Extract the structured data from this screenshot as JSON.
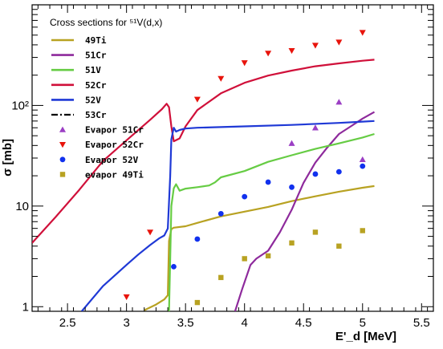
{
  "chart_data": {
    "type": "line",
    "legend_title": "Cross sections for ⁵¹V(d,x)",
    "xlabel": "E'_d [MeV]",
    "ylabel": "σ [mb]",
    "xlim": [
      2.2,
      5.6
    ],
    "ylim": [
      0.9,
      1000
    ],
    "y_scale": "log",
    "grid": false,
    "legend_position": "top-left",
    "x_ticks": [
      2.5,
      3,
      3.5,
      4,
      4.5,
      5,
      5.5
    ],
    "y_ticks": [
      1,
      10,
      100
    ],
    "y_tick_labels": [
      "1",
      "10",
      "10²"
    ],
    "series": [
      {
        "name": "49Ti",
        "kind": "line",
        "color": "#b8a222",
        "dash": "",
        "points": [
          [
            3.15,
            0.92
          ],
          [
            3.25,
            1.05
          ],
          [
            3.32,
            1.18
          ],
          [
            3.35,
            1.3
          ],
          [
            3.36,
            4.5
          ],
          [
            3.38,
            5.9
          ],
          [
            3.4,
            6.1
          ],
          [
            3.5,
            6.3
          ],
          [
            3.6,
            6.8
          ],
          [
            3.8,
            7.9
          ],
          [
            4.0,
            8.8
          ],
          [
            4.2,
            9.8
          ],
          [
            4.4,
            11.2
          ],
          [
            4.6,
            12.5
          ],
          [
            4.8,
            13.9
          ],
          [
            5.0,
            15.2
          ],
          [
            5.1,
            15.8
          ]
        ]
      },
      {
        "name": "51Cr",
        "kind": "line",
        "color": "#8e2a9c",
        "dash": "",
        "points": [
          [
            3.92,
            0.9
          ],
          [
            3.98,
            1.5
          ],
          [
            4.05,
            2.6
          ],
          [
            4.1,
            3.0
          ],
          [
            4.2,
            3.6
          ],
          [
            4.3,
            5.5
          ],
          [
            4.4,
            9.2
          ],
          [
            4.5,
            17
          ],
          [
            4.6,
            27
          ],
          [
            4.7,
            38
          ],
          [
            4.8,
            52
          ],
          [
            4.9,
            62
          ],
          [
            5.0,
            74
          ],
          [
            5.1,
            86
          ]
        ]
      },
      {
        "name": "51V",
        "kind": "line",
        "color": "#66cc44",
        "dash": "",
        "points": [
          [
            3.36,
            0.9
          ],
          [
            3.37,
            3.0
          ],
          [
            3.38,
            10
          ],
          [
            3.4,
            15
          ],
          [
            3.42,
            16.5
          ],
          [
            3.45,
            14.2
          ],
          [
            3.5,
            14.9
          ],
          [
            3.6,
            15.4
          ],
          [
            3.7,
            16.0
          ],
          [
            3.75,
            17.2
          ],
          [
            3.8,
            19.3
          ],
          [
            4.0,
            22.3
          ],
          [
            4.2,
            27.5
          ],
          [
            4.4,
            32
          ],
          [
            4.6,
            37
          ],
          [
            4.8,
            42
          ],
          [
            5.0,
            48
          ],
          [
            5.1,
            52
          ]
        ]
      },
      {
        "name": "52Cr",
        "kind": "line",
        "color": "#d0103a",
        "dash": "",
        "points": [
          [
            2.2,
            4.3
          ],
          [
            2.4,
            7.8
          ],
          [
            2.6,
            14.5
          ],
          [
            2.8,
            28
          ],
          [
            3.0,
            45
          ],
          [
            3.2,
            72
          ],
          [
            3.3,
            92
          ],
          [
            3.34,
            104
          ],
          [
            3.36,
            96
          ],
          [
            3.38,
            62
          ],
          [
            3.4,
            44
          ],
          [
            3.45,
            47
          ],
          [
            3.5,
            62
          ],
          [
            3.6,
            90
          ],
          [
            3.8,
            132
          ],
          [
            4.0,
            168
          ],
          [
            4.2,
            198
          ],
          [
            4.4,
            222
          ],
          [
            4.6,
            245
          ],
          [
            4.8,
            262
          ],
          [
            5.0,
            278
          ],
          [
            5.1,
            285
          ]
        ]
      },
      {
        "name": "52V",
        "kind": "line",
        "color": "#1f39d6",
        "dash": "",
        "points": [
          [
            2.62,
            0.9
          ],
          [
            2.8,
            1.6
          ],
          [
            3.0,
            2.6
          ],
          [
            3.1,
            3.3
          ],
          [
            3.2,
            4.1
          ],
          [
            3.28,
            4.8
          ],
          [
            3.32,
            5.1
          ],
          [
            3.35,
            6.0
          ],
          [
            3.37,
            20
          ],
          [
            3.38,
            46
          ],
          [
            3.4,
            60
          ],
          [
            3.42,
            55
          ],
          [
            3.45,
            57
          ],
          [
            3.5,
            59
          ],
          [
            3.6,
            60
          ],
          [
            4.0,
            62
          ],
          [
            4.4,
            64
          ],
          [
            4.8,
            67
          ],
          [
            5.0,
            69
          ],
          [
            5.1,
            70
          ]
        ]
      },
      {
        "name": "53Cr",
        "kind": "line",
        "color": "#000000",
        "dash": "8,3,2,3",
        "points": []
      },
      {
        "name": "Evapor 51Cr",
        "kind": "scatter",
        "marker": "triangle-up",
        "color": "#9b3ec4",
        "points": [
          [
            4.4,
            42
          ],
          [
            4.6,
            60
          ],
          [
            4.8,
            108
          ],
          [
            5.0,
            29
          ]
        ]
      },
      {
        "name": "Evapor 52Cr",
        "kind": "scatter",
        "marker": "triangle-down",
        "color": "#e8140c",
        "points": [
          [
            3.0,
            1.25
          ],
          [
            3.2,
            5.5
          ],
          [
            3.6,
            115
          ],
          [
            3.8,
            185
          ],
          [
            4.0,
            265
          ],
          [
            4.2,
            330
          ],
          [
            4.4,
            350
          ],
          [
            4.6,
            395
          ],
          [
            4.8,
            425
          ],
          [
            5.0,
            530
          ]
        ]
      },
      {
        "name": "Evapor 52V",
        "kind": "scatter",
        "marker": "circle",
        "color": "#1131ee",
        "points": [
          [
            3.4,
            2.5
          ],
          [
            3.6,
            4.7
          ],
          [
            3.8,
            8.4
          ],
          [
            4.0,
            12.4
          ],
          [
            4.2,
            17.3
          ],
          [
            4.4,
            15.4
          ],
          [
            4.6,
            20.8
          ],
          [
            4.8,
            21.9
          ],
          [
            5.0,
            24.9
          ]
        ]
      },
      {
        "name": "evapor 49Ti",
        "kind": "scatter",
        "marker": "square",
        "color": "#b8a222",
        "points": [
          [
            3.6,
            1.1
          ],
          [
            3.8,
            1.95
          ],
          [
            4.0,
            3.0
          ],
          [
            4.2,
            3.2
          ],
          [
            4.4,
            4.3
          ],
          [
            4.6,
            5.5
          ],
          [
            4.8,
            4.0
          ],
          [
            5.0,
            5.7
          ]
        ]
      }
    ]
  }
}
